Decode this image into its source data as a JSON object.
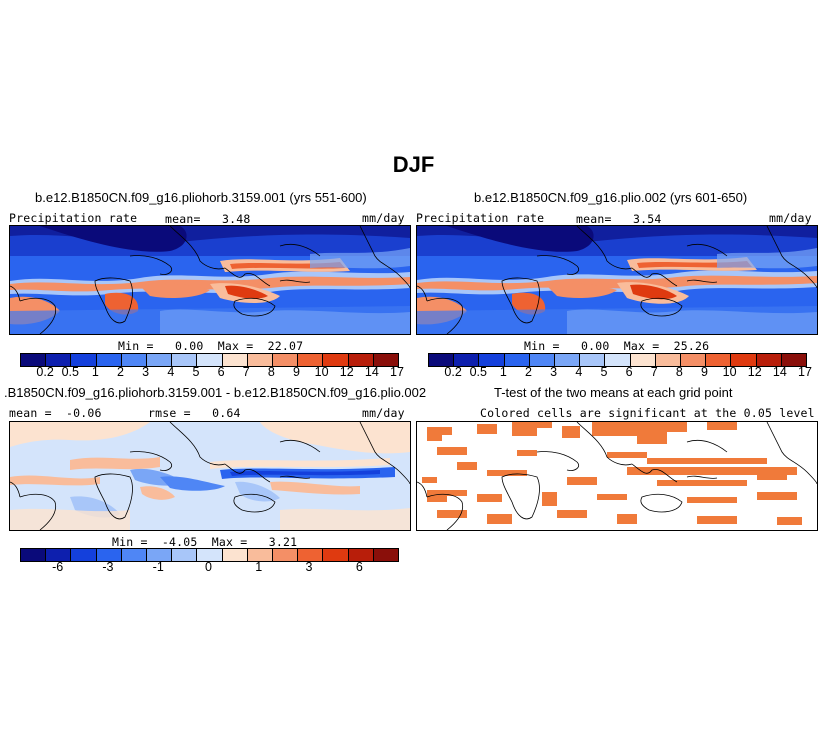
{
  "figure": {
    "title": "DJF"
  },
  "panels": {
    "top_left": {
      "title": "b.e12.B1850CN.f09_g16.pliohorb.3159.001 (yrs 551-600)",
      "left_label": "Precipitation rate",
      "center_label": "mean=   3.48",
      "right_label": "mm/day",
      "minmax": "Min =   0.00  Max =  22.07"
    },
    "top_right": {
      "title": "b.e12.B1850CN.f09_g16.plio.002 (yrs 601-650)",
      "left_label": "Precipitation rate",
      "center_label": "mean=   3.54",
      "right_label": "mm/day",
      "minmax": "Min =   0.00  Max =  25.26"
    },
    "bottom_left": {
      "title": ".B1850CN.f09_g16.pliohorb.3159.001 - b.e12.B1850CN.f09_g16.plio.002",
      "left_label": "mean =  -0.06",
      "center_label": "rmse =   0.64",
      "right_label": "mm/day",
      "minmax": "Min =  -4.05  Max =   3.21"
    },
    "bottom_right": {
      "title": "T-test of the two means at each grid point",
      "subtitle": "Colored cells are significant at the 0.05 level"
    }
  },
  "colorbars": {
    "precip": {
      "colors": [
        "#0a0a7a",
        "#0d1fae",
        "#1440dc",
        "#2a64ef",
        "#4f86f5",
        "#7aa6f6",
        "#a8c6f9",
        "#d4e4fb",
        "#fce3d0",
        "#f9bc9b",
        "#f48f66",
        "#ee6232",
        "#df3a10",
        "#b81e0a",
        "#8a0f0a"
      ],
      "ticks": [
        "0.2",
        "0.5",
        "1",
        "2",
        "3",
        "4",
        "5",
        "6",
        "7",
        "8",
        "9",
        "10",
        "12",
        "14",
        "17"
      ]
    },
    "diff": {
      "colors": [
        "#0a0a7a",
        "#0d1fae",
        "#1440dc",
        "#2a64ef",
        "#4f86f5",
        "#7aa6f6",
        "#a8c6f9",
        "#d4e4fb",
        "#fce3d0",
        "#f9bc9b",
        "#f48f66",
        "#ee6232",
        "#df3a10",
        "#b81e0a",
        "#8a0f0a"
      ],
      "ticks": [
        "-6",
        "-3",
        "-1",
        "0",
        "1",
        "3",
        "6"
      ]
    }
  },
  "map_fields": {
    "ocean_precip": "#1e5fe6",
    "dry_subtropics": "#1a2fb8",
    "wet_itcz": "#f07a50",
    "very_wet": "#d63a16",
    "diff_base": "#dbe7fb",
    "diff_pos": "#f6c2a2",
    "diff_neg": "#3a6ff0",
    "significant": "#f07a3a"
  }
}
